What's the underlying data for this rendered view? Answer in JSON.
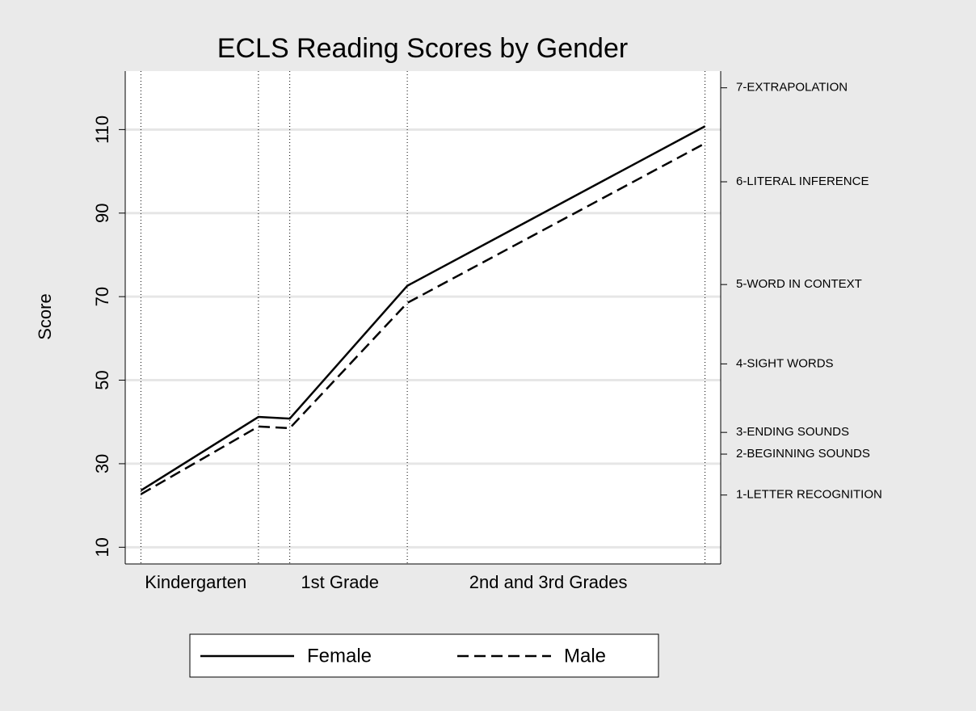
{
  "chart_data": {
    "type": "line",
    "title": "ECLS Reading Scores by Gender",
    "y_label": "Score",
    "x": [
      0,
      7.5,
      9.5,
      17,
      36
    ],
    "xlim": [
      -1,
      37
    ],
    "xticks": [
      {
        "value": 3.5,
        "label": "Kindergarten"
      },
      {
        "value": 12.7,
        "label": "1st Grade"
      },
      {
        "value": 26,
        "label": "2nd and 3rd Grades"
      }
    ],
    "ylim": [
      6,
      124
    ],
    "yticks": [
      10,
      30,
      50,
      70,
      90,
      110
    ],
    "y2lim": [
      6,
      124
    ],
    "y2ticks": [
      {
        "value": 120,
        "label": "7-EXTRAPOLATION"
      },
      {
        "value": 97.5,
        "label": "6-LITERAL INFERENCE"
      },
      {
        "value": 72.9,
        "label": "5-WORD IN CONTEXT"
      },
      {
        "value": 53.9,
        "label": "4-SIGHT WORDS"
      },
      {
        "value": 37.5,
        "label": "3-ENDING SOUNDS"
      },
      {
        "value": 32.3,
        "label": "2-BEGINNING SOUNDS"
      },
      {
        "value": 22.5,
        "label": "1-LETTER RECOGNITION"
      }
    ],
    "grid": true,
    "x_data_lines": true,
    "legend": "bottom",
    "series": [
      {
        "name": "Female",
        "color": "#000000",
        "line_style": "solid",
        "values": [
          23.6,
          41.2,
          40.8,
          72.6,
          110.8
        ]
      },
      {
        "name": "Male",
        "color": "#000000",
        "line_style": "dashed",
        "values": [
          22.7,
          38.9,
          38.5,
          68.5,
          106.7
        ]
      }
    ]
  }
}
